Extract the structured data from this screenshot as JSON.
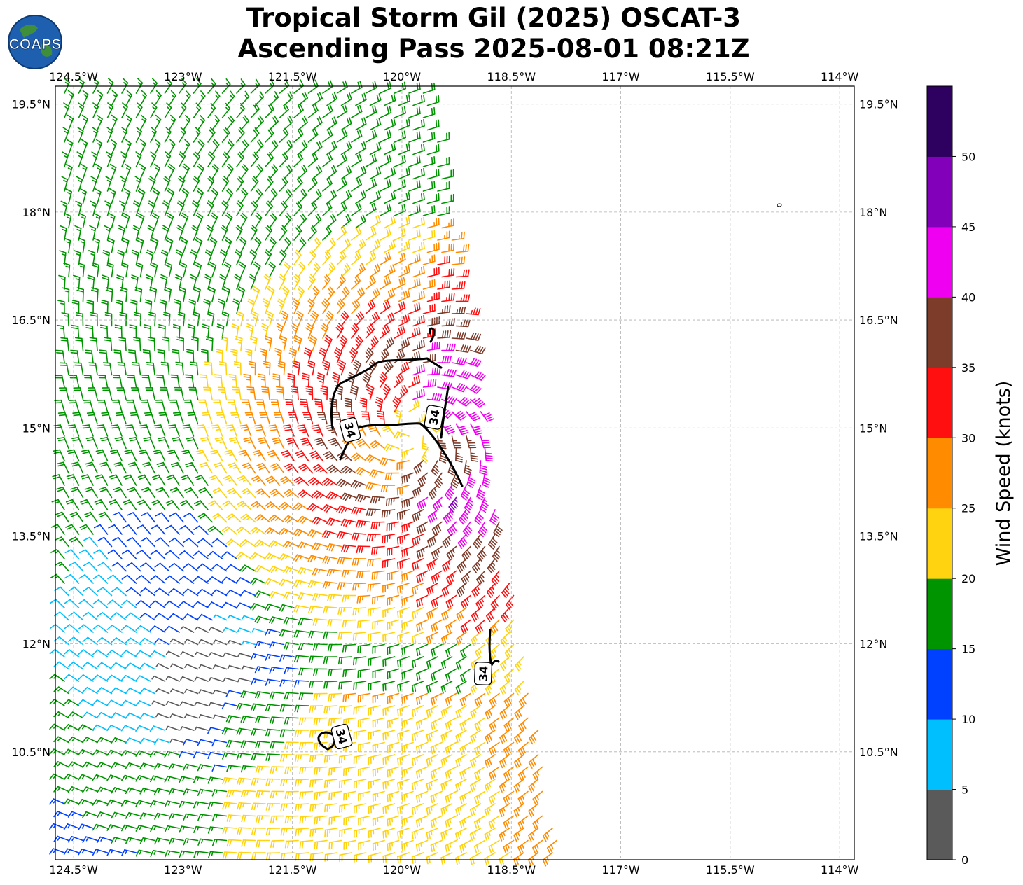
{
  "title": {
    "line1": "Tropical Storm Gil (2025) OSCAT-3",
    "line2": "Ascending Pass 2025-08-01 08:21Z"
  },
  "logo": {
    "text": "COAPS",
    "icon": "globe-icon"
  },
  "map": {
    "lon_range": [
      -124.75,
      -113.8
    ],
    "lat_range": [
      9.0,
      19.75
    ],
    "lon_ticks": [
      "124.5°W",
      "123°W",
      "121.5°W",
      "120°W",
      "118.5°W",
      "117°W",
      "115.5°W",
      "114°W"
    ],
    "lat_ticks": [
      "19.5°N",
      "18°N",
      "16.5°N",
      "15°N",
      "13.5°N",
      "12°N",
      "10.5°N"
    ],
    "grid": true,
    "storm_center": {
      "lon": -119.85,
      "lat": 14.95
    },
    "contour_labels": [
      "34",
      "34",
      "34",
      "34"
    ]
  },
  "colorbar": {
    "label": "Wind Speed (knots)",
    "ticks": [
      "0",
      "5",
      "10",
      "15",
      "20",
      "25",
      "30",
      "35",
      "40",
      "45",
      "50"
    ],
    "colors": [
      "#5a5a5a",
      "#00bfff",
      "#0040ff",
      "#009500",
      "#ffd30f",
      "#ff8c00",
      "#ff0f0f",
      "#7d3b2a",
      "#f000f0",
      "#8300bb",
      "#2e005f"
    ]
  }
}
